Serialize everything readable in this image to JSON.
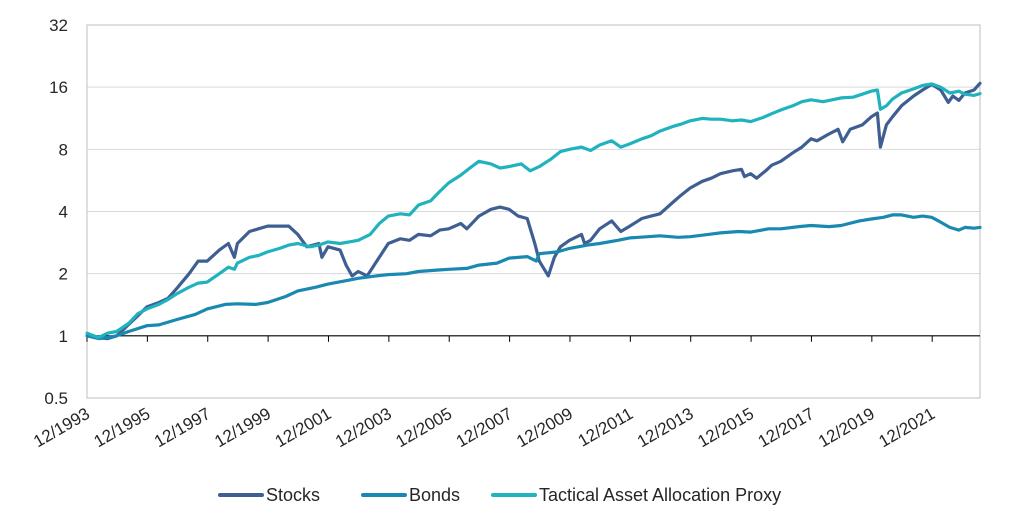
{
  "chart_data": {
    "type": "line",
    "title": "",
    "xlabel": "",
    "ylabel": "",
    "yscale": "log2",
    "ylim": [
      0.5,
      32
    ],
    "y_ticks": [
      "0.5",
      "1",
      "2",
      "4",
      "8",
      "16",
      "32"
    ],
    "xlim": [
      1993.917,
      2023.5
    ],
    "x_ticks": [
      "12/1993",
      "12/1995",
      "12/1997",
      "12/1999",
      "12/2001",
      "12/2003",
      "12/2005",
      "12/2007",
      "12/2009",
      "12/2011",
      "12/2013",
      "12/2015",
      "12/2017",
      "12/2019",
      "12/2021"
    ],
    "grid": "horizontal",
    "legend_position": "bottom",
    "colors": {
      "Stocks": "#3f5f93",
      "Bonds": "#1a89b1",
      "Tactical Asset Allocation Proxy": "#20b3be"
    },
    "series": [
      {
        "name": "Stocks",
        "points": [
          [
            1993.92,
            1.0
          ],
          [
            1994.3,
            0.98
          ],
          [
            1994.6,
            0.97
          ],
          [
            1994.9,
            1.0
          ],
          [
            1995.2,
            1.1
          ],
          [
            1995.6,
            1.25
          ],
          [
            1995.9,
            1.38
          ],
          [
            1996.3,
            1.45
          ],
          [
            1996.6,
            1.52
          ],
          [
            1996.9,
            1.7
          ],
          [
            1997.3,
            2.0
          ],
          [
            1997.6,
            2.3
          ],
          [
            1997.9,
            2.3
          ],
          [
            1998.3,
            2.6
          ],
          [
            1998.6,
            2.8
          ],
          [
            1998.8,
            2.4
          ],
          [
            1998.9,
            2.8
          ],
          [
            1999.3,
            3.2
          ],
          [
            1999.6,
            3.3
          ],
          [
            1999.9,
            3.4
          ],
          [
            2000.2,
            3.4
          ],
          [
            2000.6,
            3.4
          ],
          [
            2000.9,
            3.1
          ],
          [
            2001.2,
            2.7
          ],
          [
            2001.6,
            2.8
          ],
          [
            2001.7,
            2.4
          ],
          [
            2001.9,
            2.7
          ],
          [
            2002.3,
            2.6
          ],
          [
            2002.5,
            2.2
          ],
          [
            2002.7,
            1.95
          ],
          [
            2002.9,
            2.05
          ],
          [
            2003.2,
            1.95
          ],
          [
            2003.6,
            2.4
          ],
          [
            2003.9,
            2.8
          ],
          [
            2004.3,
            2.95
          ],
          [
            2004.6,
            2.9
          ],
          [
            2004.9,
            3.1
          ],
          [
            2005.3,
            3.05
          ],
          [
            2005.6,
            3.25
          ],
          [
            2005.9,
            3.3
          ],
          [
            2006.3,
            3.5
          ],
          [
            2006.5,
            3.3
          ],
          [
            2006.9,
            3.8
          ],
          [
            2007.3,
            4.1
          ],
          [
            2007.6,
            4.2
          ],
          [
            2007.9,
            4.1
          ],
          [
            2008.2,
            3.8
          ],
          [
            2008.5,
            3.7
          ],
          [
            2008.75,
            2.8
          ],
          [
            2008.9,
            2.3
          ],
          [
            2009.2,
            1.95
          ],
          [
            2009.4,
            2.4
          ],
          [
            2009.6,
            2.7
          ],
          [
            2009.9,
            2.9
          ],
          [
            2010.3,
            3.1
          ],
          [
            2010.4,
            2.8
          ],
          [
            2010.6,
            2.9
          ],
          [
            2010.9,
            3.3
          ],
          [
            2011.3,
            3.6
          ],
          [
            2011.6,
            3.2
          ],
          [
            2011.9,
            3.4
          ],
          [
            2012.3,
            3.7
          ],
          [
            2012.6,
            3.8
          ],
          [
            2012.9,
            3.9
          ],
          [
            2013.3,
            4.4
          ],
          [
            2013.6,
            4.8
          ],
          [
            2013.9,
            5.2
          ],
          [
            2014.3,
            5.6
          ],
          [
            2014.6,
            5.8
          ],
          [
            2014.9,
            6.1
          ],
          [
            2015.3,
            6.3
          ],
          [
            2015.6,
            6.4
          ],
          [
            2015.7,
            5.9
          ],
          [
            2015.9,
            6.1
          ],
          [
            2016.1,
            5.8
          ],
          [
            2016.4,
            6.3
          ],
          [
            2016.6,
            6.7
          ],
          [
            2016.9,
            7.0
          ],
          [
            2017.3,
            7.7
          ],
          [
            2017.6,
            8.2
          ],
          [
            2017.9,
            9.0
          ],
          [
            2018.1,
            8.8
          ],
          [
            2018.5,
            9.5
          ],
          [
            2018.8,
            10.0
          ],
          [
            2018.95,
            8.7
          ],
          [
            2019.2,
            10.0
          ],
          [
            2019.6,
            10.5
          ],
          [
            2019.9,
            11.5
          ],
          [
            2020.1,
            12.0
          ],
          [
            2020.2,
            8.2
          ],
          [
            2020.4,
            10.5
          ],
          [
            2020.6,
            11.5
          ],
          [
            2020.9,
            13.0
          ],
          [
            2021.3,
            14.5
          ],
          [
            2021.6,
            15.5
          ],
          [
            2021.9,
            16.5
          ],
          [
            2022.2,
            15.5
          ],
          [
            2022.45,
            13.5
          ],
          [
            2022.6,
            14.5
          ],
          [
            2022.8,
            13.8
          ],
          [
            2023.0,
            15.0
          ],
          [
            2023.3,
            15.5
          ],
          [
            2023.5,
            16.7
          ]
        ]
      },
      {
        "name": "Bonds",
        "points": [
          [
            1993.92,
            1.0
          ],
          [
            1994.3,
            0.97
          ],
          [
            1994.6,
            0.98
          ],
          [
            1994.9,
            1.0
          ],
          [
            1995.3,
            1.05
          ],
          [
            1995.9,
            1.12
          ],
          [
            1996.3,
            1.13
          ],
          [
            1996.9,
            1.2
          ],
          [
            1997.5,
            1.27
          ],
          [
            1997.9,
            1.35
          ],
          [
            1998.5,
            1.42
          ],
          [
            1998.9,
            1.43
          ],
          [
            1999.5,
            1.42
          ],
          [
            1999.9,
            1.45
          ],
          [
            2000.5,
            1.55
          ],
          [
            2000.9,
            1.65
          ],
          [
            2001.5,
            1.72
          ],
          [
            2001.9,
            1.78
          ],
          [
            2002.5,
            1.85
          ],
          [
            2002.9,
            1.9
          ],
          [
            2003.5,
            1.95
          ],
          [
            2003.9,
            1.98
          ],
          [
            2004.5,
            2.0
          ],
          [
            2004.9,
            2.05
          ],
          [
            2005.5,
            2.08
          ],
          [
            2005.9,
            2.1
          ],
          [
            2006.5,
            2.12
          ],
          [
            2006.9,
            2.2
          ],
          [
            2007.5,
            2.25
          ],
          [
            2007.9,
            2.38
          ],
          [
            2008.5,
            2.42
          ],
          [
            2008.8,
            2.3
          ],
          [
            2008.9,
            2.5
          ],
          [
            2009.5,
            2.55
          ],
          [
            2009.9,
            2.65
          ],
          [
            2010.5,
            2.75
          ],
          [
            2010.9,
            2.8
          ],
          [
            2011.5,
            2.9
          ],
          [
            2011.9,
            2.98
          ],
          [
            2012.5,
            3.02
          ],
          [
            2012.9,
            3.05
          ],
          [
            2013.5,
            3.0
          ],
          [
            2013.9,
            3.02
          ],
          [
            2014.5,
            3.1
          ],
          [
            2014.9,
            3.15
          ],
          [
            2015.5,
            3.2
          ],
          [
            2015.9,
            3.18
          ],
          [
            2016.5,
            3.3
          ],
          [
            2016.9,
            3.3
          ],
          [
            2017.5,
            3.38
          ],
          [
            2017.9,
            3.42
          ],
          [
            2018.5,
            3.38
          ],
          [
            2018.9,
            3.42
          ],
          [
            2019.5,
            3.6
          ],
          [
            2019.9,
            3.68
          ],
          [
            2020.3,
            3.75
          ],
          [
            2020.6,
            3.85
          ],
          [
            2020.9,
            3.85
          ],
          [
            2021.3,
            3.75
          ],
          [
            2021.6,
            3.8
          ],
          [
            2021.9,
            3.75
          ],
          [
            2022.2,
            3.55
          ],
          [
            2022.5,
            3.35
          ],
          [
            2022.8,
            3.25
          ],
          [
            2023.0,
            3.35
          ],
          [
            2023.3,
            3.32
          ],
          [
            2023.5,
            3.35
          ]
        ]
      },
      {
        "name": "Tactical Asset Allocation Proxy",
        "points": [
          [
            1993.92,
            1.03
          ],
          [
            1994.3,
            0.98
          ],
          [
            1994.6,
            1.03
          ],
          [
            1994.9,
            1.05
          ],
          [
            1995.3,
            1.15
          ],
          [
            1995.6,
            1.28
          ],
          [
            1995.9,
            1.35
          ],
          [
            1996.3,
            1.42
          ],
          [
            1996.6,
            1.5
          ],
          [
            1996.9,
            1.6
          ],
          [
            1997.3,
            1.72
          ],
          [
            1997.6,
            1.8
          ],
          [
            1997.9,
            1.82
          ],
          [
            1998.3,
            2.0
          ],
          [
            1998.6,
            2.15
          ],
          [
            1998.8,
            2.1
          ],
          [
            1998.9,
            2.25
          ],
          [
            1999.3,
            2.4
          ],
          [
            1999.6,
            2.45
          ],
          [
            1999.9,
            2.55
          ],
          [
            2000.3,
            2.65
          ],
          [
            2000.6,
            2.75
          ],
          [
            2000.9,
            2.8
          ],
          [
            2001.3,
            2.7
          ],
          [
            2001.6,
            2.75
          ],
          [
            2001.9,
            2.85
          ],
          [
            2002.3,
            2.8
          ],
          [
            2002.6,
            2.85
          ],
          [
            2002.9,
            2.9
          ],
          [
            2003.3,
            3.1
          ],
          [
            2003.6,
            3.5
          ],
          [
            2003.9,
            3.8
          ],
          [
            2004.3,
            3.9
          ],
          [
            2004.6,
            3.85
          ],
          [
            2004.9,
            4.3
          ],
          [
            2005.3,
            4.5
          ],
          [
            2005.6,
            5.0
          ],
          [
            2005.9,
            5.5
          ],
          [
            2006.3,
            6.0
          ],
          [
            2006.6,
            6.5
          ],
          [
            2006.9,
            7.0
          ],
          [
            2007.3,
            6.8
          ],
          [
            2007.6,
            6.5
          ],
          [
            2007.9,
            6.6
          ],
          [
            2008.3,
            6.8
          ],
          [
            2008.6,
            6.3
          ],
          [
            2008.9,
            6.6
          ],
          [
            2009.3,
            7.2
          ],
          [
            2009.6,
            7.8
          ],
          [
            2009.9,
            8.0
          ],
          [
            2010.3,
            8.2
          ],
          [
            2010.6,
            7.9
          ],
          [
            2010.9,
            8.4
          ],
          [
            2011.3,
            8.8
          ],
          [
            2011.6,
            8.2
          ],
          [
            2011.9,
            8.5
          ],
          [
            2012.3,
            9.0
          ],
          [
            2012.6,
            9.3
          ],
          [
            2012.9,
            9.8
          ],
          [
            2013.3,
            10.3
          ],
          [
            2013.6,
            10.6
          ],
          [
            2013.9,
            11.0
          ],
          [
            2014.3,
            11.3
          ],
          [
            2014.6,
            11.2
          ],
          [
            2014.9,
            11.2
          ],
          [
            2015.3,
            11.0
          ],
          [
            2015.6,
            11.1
          ],
          [
            2015.9,
            10.9
          ],
          [
            2016.3,
            11.4
          ],
          [
            2016.6,
            11.9
          ],
          [
            2016.9,
            12.4
          ],
          [
            2017.3,
            13.0
          ],
          [
            2017.6,
            13.6
          ],
          [
            2017.9,
            13.9
          ],
          [
            2018.3,
            13.6
          ],
          [
            2018.6,
            13.9
          ],
          [
            2018.9,
            14.2
          ],
          [
            2019.3,
            14.3
          ],
          [
            2019.6,
            14.8
          ],
          [
            2019.9,
            15.3
          ],
          [
            2020.1,
            15.5
          ],
          [
            2020.2,
            12.5
          ],
          [
            2020.4,
            13.0
          ],
          [
            2020.6,
            14.0
          ],
          [
            2020.9,
            15.0
          ],
          [
            2021.3,
            15.7
          ],
          [
            2021.6,
            16.3
          ],
          [
            2021.9,
            16.6
          ],
          [
            2022.2,
            16.0
          ],
          [
            2022.5,
            15.0
          ],
          [
            2022.8,
            15.3
          ],
          [
            2023.0,
            14.8
          ],
          [
            2023.3,
            14.6
          ],
          [
            2023.5,
            14.9
          ]
        ]
      }
    ]
  }
}
